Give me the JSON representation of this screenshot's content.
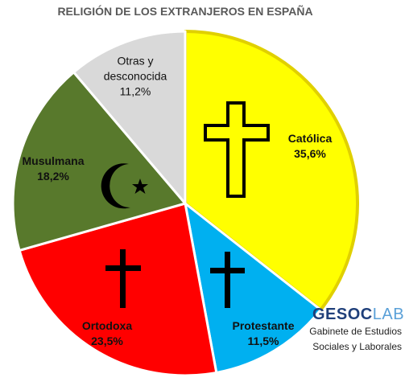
{
  "chart_data": {
    "type": "pie",
    "title": "RELIGIÓN DE LOS EXTRANJEROS EN ESPAÑA",
    "categories": [
      "Católica",
      "Protestante",
      "Ortodoxa",
      "Musulmana",
      "Otras y desconocida"
    ],
    "values": [
      35.6,
      11.5,
      23.5,
      18.2,
      11.2
    ],
    "value_labels": [
      "35,6%",
      "11,5%",
      "23,5%",
      "18,2%",
      "11,2%"
    ],
    "colors": [
      "#ffff00",
      "#00b0f0",
      "#ff0000",
      "#58792c",
      "#d9d9d9"
    ]
  },
  "logo": {
    "title_parts": [
      "GESOC",
      "LAB"
    ],
    "lines": [
      "Gabinete de Estudios",
      "Sociales y Laborales"
    ]
  }
}
